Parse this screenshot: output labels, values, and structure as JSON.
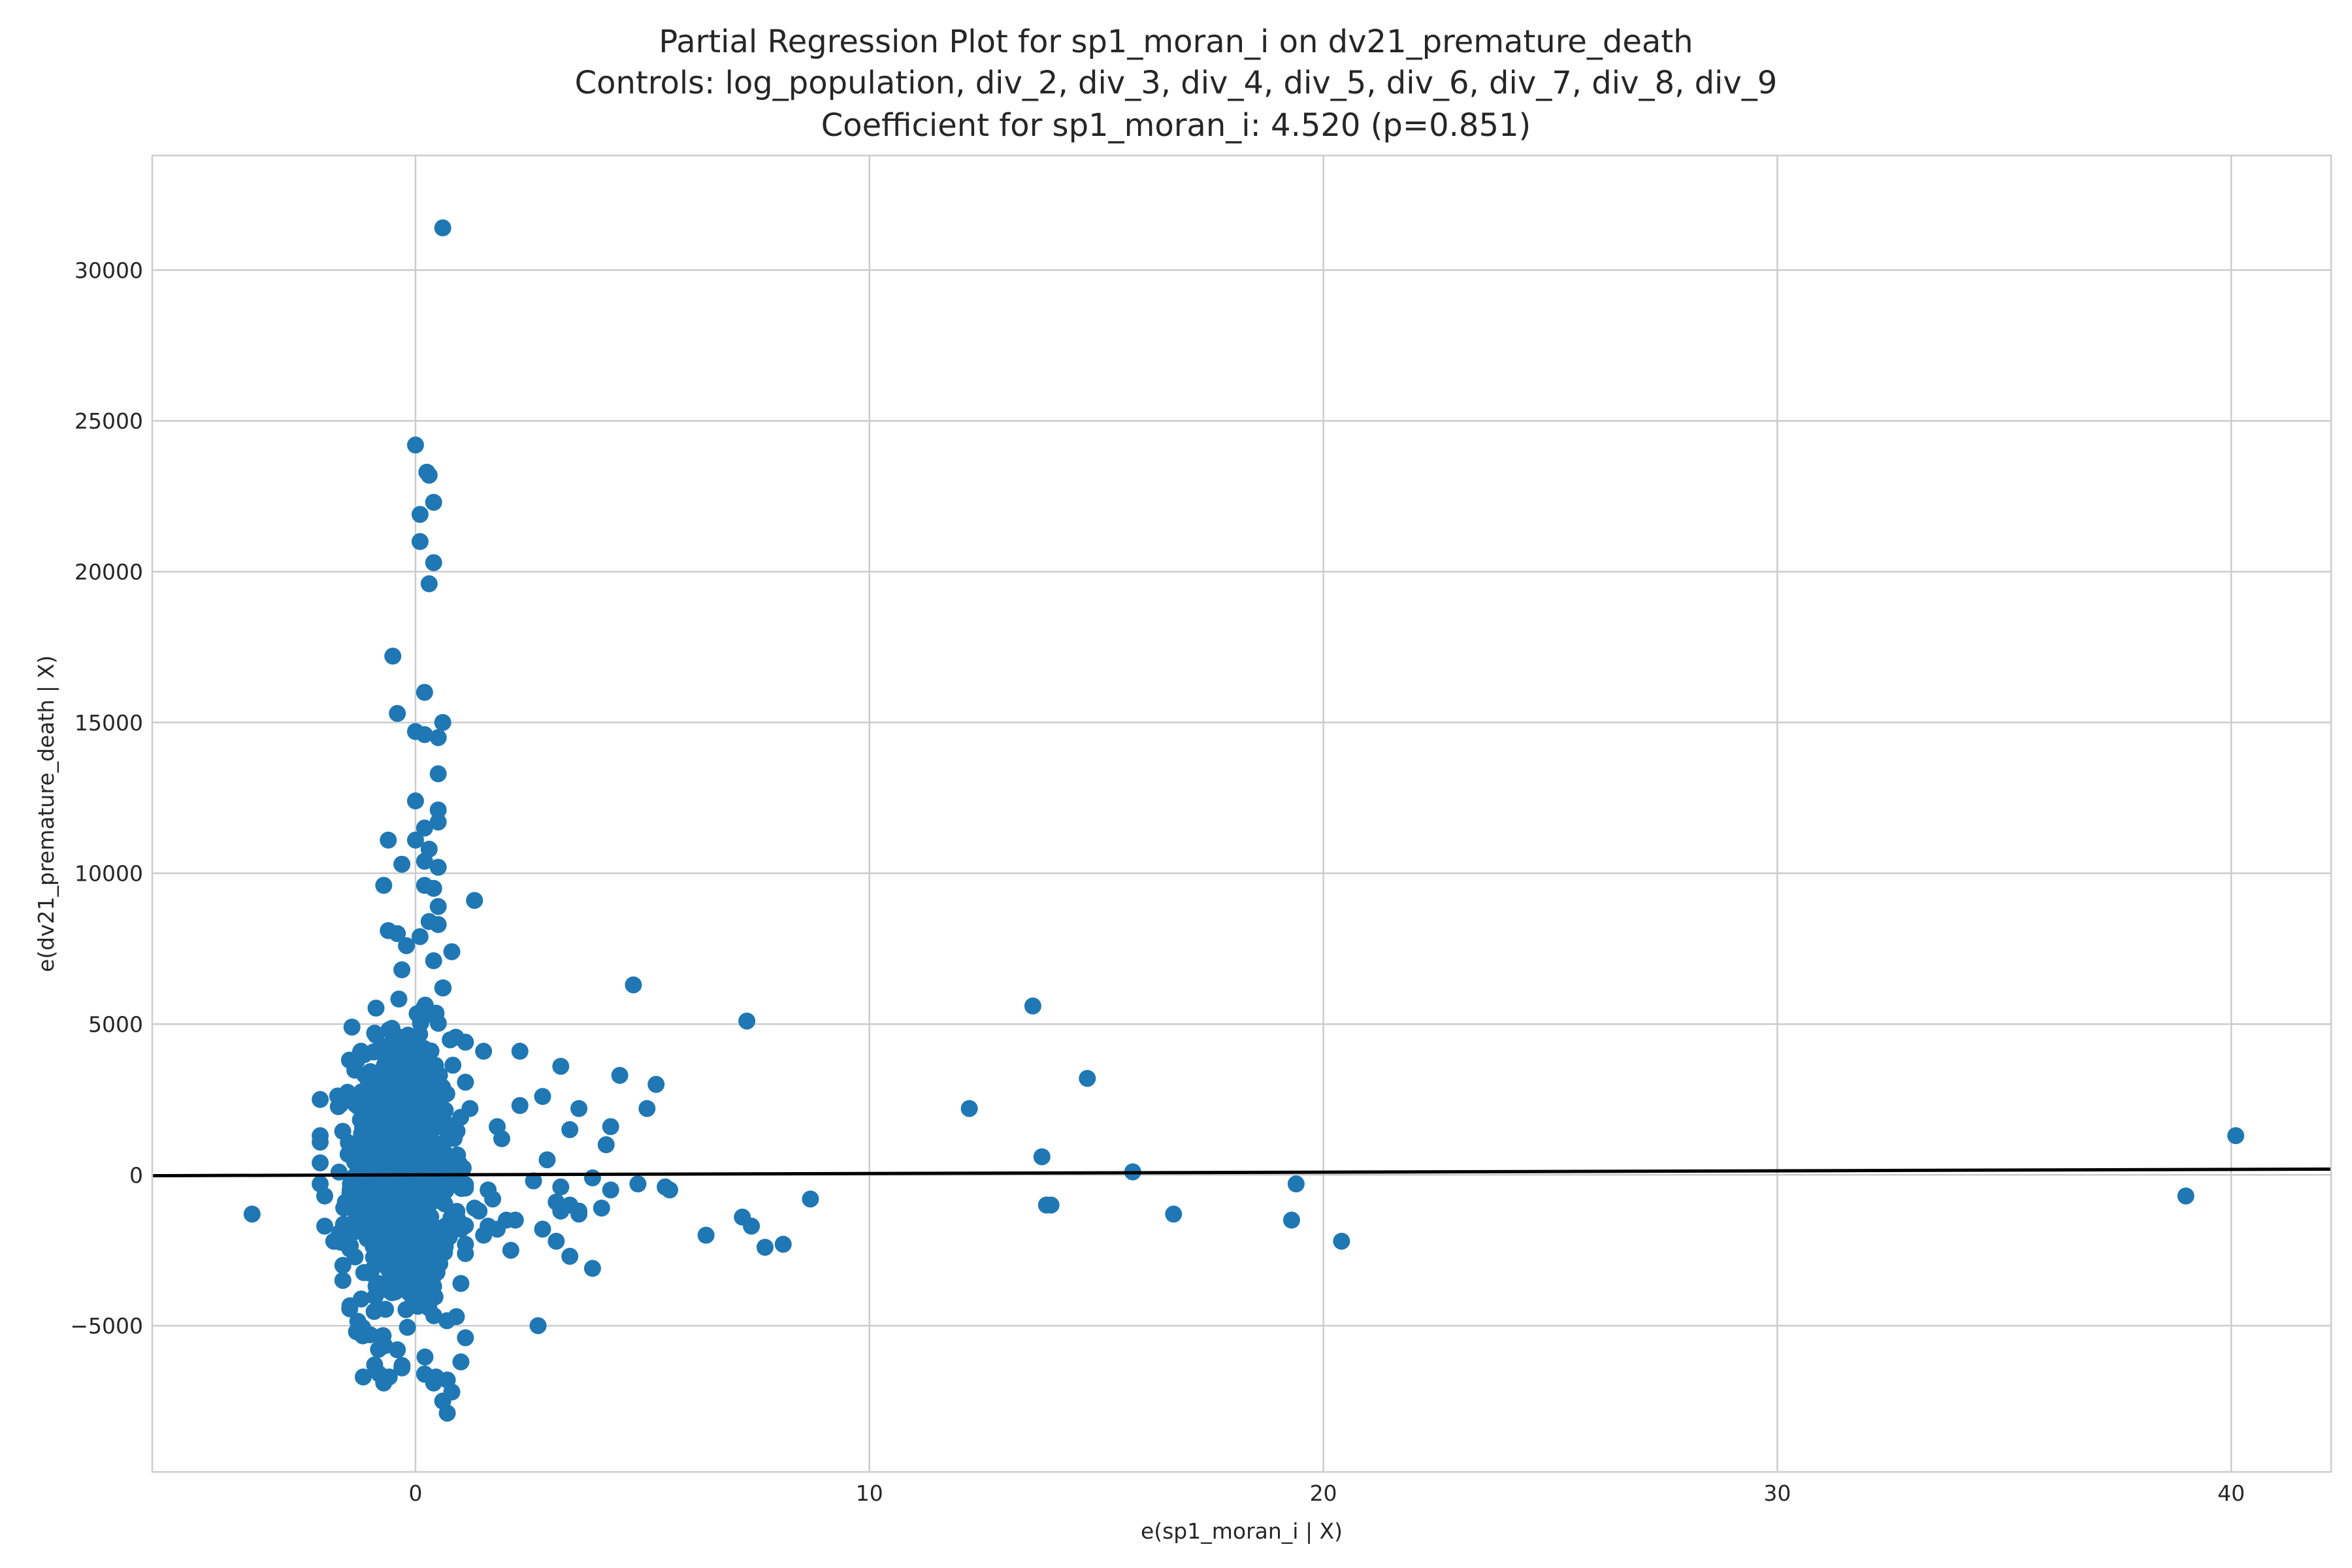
{
  "chart_data": {
    "type": "scatter",
    "title_lines": [
      "Partial Regression Plot for sp1_moran_i on dv21_premature_death",
      "Controls: log_population, div_2, div_3, div_4, div_5, div_6, div_7, div_8, div_9",
      "Coefficient for sp1_moran_i: 4.520 (p=0.851)"
    ],
    "xlabel": "e(sp1_moran_i | X)",
    "ylabel": "e(dv21_premature_death | X)",
    "xlim": [
      -5.8,
      42.2
    ],
    "ylim": [
      -9850,
      33800
    ],
    "xticks": [
      0,
      10,
      20,
      30,
      40
    ],
    "yticks": [
      -5000,
      0,
      5000,
      10000,
      15000,
      20000,
      25000,
      30000
    ],
    "grid": true,
    "point_color": "#1f77b4",
    "line_color": "#000000",
    "fit_line": {
      "intercept": 0,
      "slope": 4.52
    },
    "cluster": {
      "x_mean": -0.3,
      "x_sd": 0.55,
      "x_min": -2.1,
      "x_max": 1.1,
      "y_mean": 0,
      "y_sd": 2300,
      "y_min": -6700,
      "y_max": 6200,
      "count": 900
    },
    "points": [
      [
        0.6,
        31400
      ],
      [
        0,
        24200
      ],
      [
        0.25,
        23300
      ],
      [
        0.3,
        23200
      ],
      [
        0.4,
        22300
      ],
      [
        0.1,
        21900
      ],
      [
        0.1,
        21000
      ],
      [
        0.4,
        20300
      ],
      [
        0.3,
        19600
      ],
      [
        -0.5,
        17200
      ],
      [
        0.2,
        16000
      ],
      [
        -0.4,
        15300
      ],
      [
        0.6,
        15000
      ],
      [
        0,
        14700
      ],
      [
        0.2,
        14600
      ],
      [
        0.5,
        14500
      ],
      [
        0.5,
        13300
      ],
      [
        0,
        12400
      ],
      [
        0.5,
        12100
      ],
      [
        0.5,
        11700
      ],
      [
        0.2,
        11500
      ],
      [
        -0.6,
        11100
      ],
      [
        0,
        11100
      ],
      [
        0.3,
        10800
      ],
      [
        0.2,
        10400
      ],
      [
        -0.3,
        10300
      ],
      [
        0.5,
        10200
      ],
      [
        -0.7,
        9600
      ],
      [
        0.2,
        9600
      ],
      [
        0.4,
        9500
      ],
      [
        1.3,
        9100
      ],
      [
        0.5,
        8900
      ],
      [
        -0.6,
        8100
      ],
      [
        0.3,
        8400
      ],
      [
        0.5,
        8300
      ],
      [
        -0.4,
        8000
      ],
      [
        0.8,
        7400
      ],
      [
        0.4,
        7100
      ],
      [
        0.6,
        6200
      ],
      [
        -0.2,
        7600
      ],
      [
        0.1,
        7900
      ],
      [
        -0.3,
        6800
      ],
      [
        -1.4,
        4900
      ],
      [
        -0.9,
        4700
      ],
      [
        -1.2,
        4100
      ],
      [
        -3.6,
        -1300
      ],
      [
        -2.1,
        2500
      ],
      [
        -2.1,
        1300
      ],
      [
        -2.1,
        400
      ],
      [
        -2.1,
        -300
      ],
      [
        -2.0,
        -700
      ],
      [
        -2.0,
        -1700
      ],
      [
        -1.8,
        -2200
      ],
      [
        -1.6,
        -3000
      ],
      [
        -1.6,
        -3500
      ],
      [
        -1.3,
        -5200
      ],
      [
        -1.0,
        -5300
      ],
      [
        -0.9,
        -6300
      ],
      [
        -0.8,
        -6600
      ],
      [
        -0.7,
        -6900
      ],
      [
        -0.4,
        -5800
      ],
      [
        -0.3,
        -6400
      ],
      [
        0.2,
        -6600
      ],
      [
        0.4,
        -6900
      ],
      [
        0.6,
        -7500
      ],
      [
        0.7,
        -7900
      ],
      [
        0.8,
        -7200
      ],
      [
        0.7,
        -6800
      ],
      [
        1.0,
        -6200
      ],
      [
        1.1,
        -5400
      ],
      [
        0.9,
        -4700
      ],
      [
        1.0,
        -3600
      ],
      [
        1.1,
        -2300
      ],
      [
        1.0,
        -1800
      ],
      [
        1.2,
        2200
      ],
      [
        1.1,
        4400
      ],
      [
        1.5,
        4100
      ],
      [
        1.4,
        -1200
      ],
      [
        1.3,
        -1100
      ],
      [
        1.5,
        -2000
      ],
      [
        1.6,
        -1700
      ],
      [
        1.6,
        -500
      ],
      [
        1.7,
        -800
      ],
      [
        1.8,
        1600
      ],
      [
        1.9,
        1200
      ],
      [
        1.8,
        -1800
      ],
      [
        2.0,
        -1500
      ],
      [
        2.1,
        -2500
      ],
      [
        2.2,
        -1500
      ],
      [
        2.3,
        2300
      ],
      [
        2.3,
        4100
      ],
      [
        2.6,
        -200
      ],
      [
        2.8,
        2600
      ],
      [
        2.8,
        -1800
      ],
      [
        2.7,
        -5000
      ],
      [
        2.9,
        500
      ],
      [
        3.1,
        -2200
      ],
      [
        3.1,
        -900
      ],
      [
        3.2,
        -400
      ],
      [
        3.2,
        -1200
      ],
      [
        3.2,
        3600
      ],
      [
        3.4,
        -1000
      ],
      [
        3.4,
        1500
      ],
      [
        3.4,
        -2700
      ],
      [
        3.6,
        -1300
      ],
      [
        3.6,
        -1200
      ],
      [
        3.6,
        2200
      ],
      [
        3.9,
        -3100
      ],
      [
        3.9,
        -100
      ],
      [
        4.1,
        -1100
      ],
      [
        4.2,
        1000
      ],
      [
        4.3,
        -500
      ],
      [
        4.3,
        1600
      ],
      [
        4.5,
        3300
      ],
      [
        4.8,
        6300
      ],
      [
        4.9,
        -300
      ],
      [
        5.1,
        2200
      ],
      [
        5.3,
        3000
      ],
      [
        5.5,
        -400
      ],
      [
        5.6,
        -500
      ],
      [
        6.4,
        -2000
      ],
      [
        7.2,
        -1400
      ],
      [
        7.3,
        5100
      ],
      [
        7.4,
        -1700
      ],
      [
        7.7,
        -2400
      ],
      [
        8.1,
        -2300
      ],
      [
        8.7,
        -800
      ],
      [
        12.2,
        2200
      ],
      [
        13.6,
        5600
      ],
      [
        13.8,
        600
      ],
      [
        13.9,
        -1000
      ],
      [
        14.0,
        -1000
      ],
      [
        14.8,
        3200
      ],
      [
        15.8,
        100
      ],
      [
        16.7,
        -1300
      ],
      [
        19.3,
        -1500
      ],
      [
        19.4,
        -300
      ],
      [
        20.4,
        -2200
      ],
      [
        39.0,
        -700
      ],
      [
        40.1,
        1300
      ]
    ]
  }
}
